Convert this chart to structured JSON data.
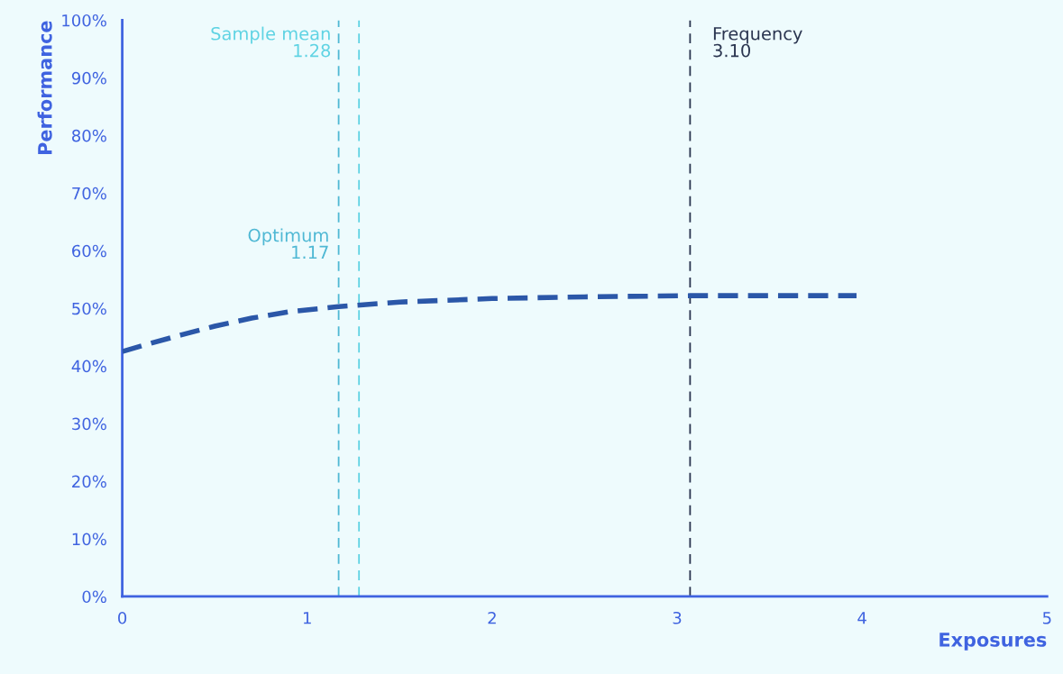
{
  "chart_data": {
    "type": "line",
    "xlabel": "Exposures",
    "ylabel": "Performance",
    "x": [
      0,
      0.16,
      0.32,
      0.5,
      0.7,
      0.9,
      1.17,
      1.5,
      2,
      2.5,
      3.07,
      3.5,
      3.97
    ],
    "series": [
      {
        "color": "#2b57a8",
        "values": [
          42.5,
          44.0,
          45.4,
          46.9,
          48.3,
          49.4,
          50.3,
          51.1,
          51.7,
          52.0,
          52.2,
          52.2,
          52.2
        ]
      }
    ],
    "line_style": "dashed",
    "marker": "none",
    "grid": false,
    "legend": false,
    "xlim": [
      0,
      5
    ],
    "xticks": [
      0,
      1,
      2,
      3,
      4,
      5
    ],
    "ylim": [
      0,
      100
    ],
    "yticks": [
      {
        "value": 0,
        "label": "0%"
      },
      {
        "value": 10,
        "label": "10%"
      },
      {
        "value": 20,
        "label": "20%"
      },
      {
        "value": 30,
        "label": "30%"
      },
      {
        "value": 40,
        "label": "40%"
      },
      {
        "value": 50,
        "label": "50%"
      },
      {
        "value": 60,
        "label": "60%"
      },
      {
        "value": 70,
        "label": "70%"
      },
      {
        "value": 80,
        "label": "80%"
      },
      {
        "value": 90,
        "label": "90%"
      },
      {
        "value": 100,
        "label": "100%"
      }
    ],
    "ref_lines": [
      {
        "axis": "x",
        "value": 1.28,
        "label": "Sample mean\n1.28",
        "color": "#5fd3e3",
        "line_style": "dashed"
      },
      {
        "axis": "x",
        "value": 1.17,
        "label": "Optimum\n1.17",
        "color": "#4fb8d4",
        "line_style": "dashed"
      },
      {
        "axis": "x",
        "value": 3.07,
        "label": "Frequency\n3.10",
        "color": "#2a3550",
        "line_style": "dashed"
      }
    ]
  }
}
